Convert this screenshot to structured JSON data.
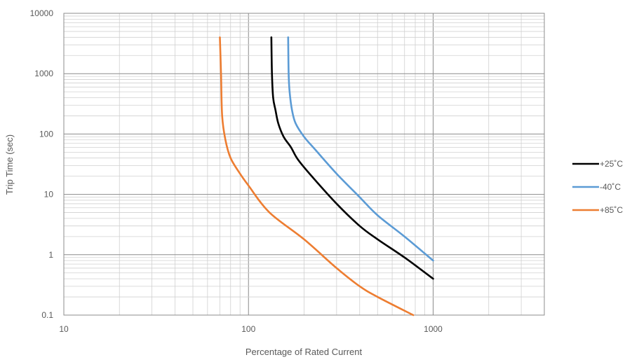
{
  "chart_data": {
    "type": "line",
    "title": "",
    "xlabel": "Percentage of Rated Current",
    "ylabel": "Trip Time (sec)",
    "x_scale": "log",
    "y_scale": "log",
    "xlim": [
      10,
      4000
    ],
    "ylim": [
      0.1,
      10000
    ],
    "x_ticks": [
      {
        "value": 10,
        "label": "10"
      },
      {
        "value": 100,
        "label": "100"
      },
      {
        "value": 1000,
        "label": "1000"
      }
    ],
    "y_ticks": [
      {
        "value": 0.1,
        "label": "0.1"
      },
      {
        "value": 1,
        "label": "1"
      },
      {
        "value": 10,
        "label": "10"
      },
      {
        "value": 100,
        "label": "100"
      },
      {
        "value": 1000,
        "label": "1000"
      },
      {
        "value": 10000,
        "label": "10000"
      }
    ],
    "grid": true,
    "legend_position": "right",
    "series": [
      {
        "name": "+25˚C",
        "color": "#000000",
        "points": [
          [
            133,
            4000
          ],
          [
            134,
            1000
          ],
          [
            136,
            400
          ],
          [
            140,
            250
          ],
          [
            145,
            150
          ],
          [
            155,
            90
          ],
          [
            170,
            60
          ],
          [
            185,
            38
          ],
          [
            220,
            20
          ],
          [
            300,
            7
          ],
          [
            400,
            3
          ],
          [
            500,
            1.8
          ],
          [
            700,
            0.9
          ],
          [
            1000,
            0.4
          ]
        ]
      },
      {
        "name": "-40˚C",
        "color": "#5b9bd5",
        "points": [
          [
            164,
            4000
          ],
          [
            165,
            1000
          ],
          [
            167,
            500
          ],
          [
            172,
            250
          ],
          [
            180,
            150
          ],
          [
            200,
            90
          ],
          [
            230,
            55
          ],
          [
            300,
            22
          ],
          [
            400,
            9
          ],
          [
            500,
            4.5
          ],
          [
            700,
            2
          ],
          [
            1000,
            0.8
          ]
        ]
      },
      {
        "name": "+85˚C",
        "color": "#ed7d31",
        "points": [
          [
            70,
            4000
          ],
          [
            71,
            1000
          ],
          [
            72,
            200
          ],
          [
            75,
            80
          ],
          [
            80,
            40
          ],
          [
            90,
            22
          ],
          [
            100,
            14
          ],
          [
            130,
            5
          ],
          [
            200,
            1.8
          ],
          [
            300,
            0.6
          ],
          [
            400,
            0.3
          ],
          [
            500,
            0.2
          ],
          [
            780,
            0.1
          ]
        ]
      }
    ]
  }
}
